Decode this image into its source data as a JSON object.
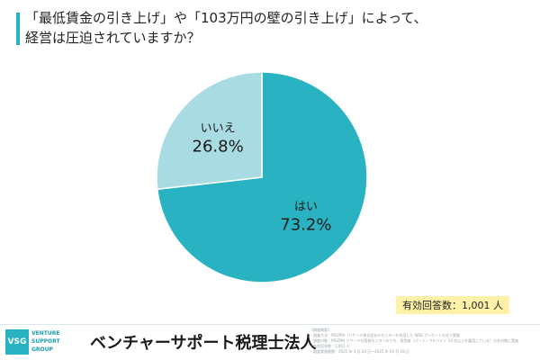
{
  "title": {
    "line1": "「最低賃金の引き上げ」や「103万円の壁の引き上げ」によって、",
    "line2": "経営は圧迫されていますか？"
  },
  "chart_data": {
    "type": "pie",
    "start_angle_deg": 0,
    "direction": "clockwise",
    "slices": [
      {
        "label": "はい",
        "value": 73.2,
        "display": "73.2%",
        "color": "#29b3c2"
      },
      {
        "label": "いいえ",
        "value": 26.8,
        "display": "26.8%",
        "color": "#a8dbe2"
      }
    ]
  },
  "respondents": "有効回答数：1,001 人",
  "footer": {
    "logo_mark": "VSG",
    "logo_lines": [
      "VENTURE",
      "SUPPORT",
      "GROUP"
    ],
    "firm_name": "ベンチャーサポート税理士法人",
    "notes": [
      "《調査概要》",
      "・調査方法：PRIZMA（リサーチ株式会社のモニターを利用した WEB アンケート方式で実施",
      "・調査対象：PRIZMA リサーチ社登録モニターのうち、経営者（パート・アルバイト 10 名以上を雇用している）方を対象に実施",
      "・有効回答数：1,001 人",
      "・調査実施期間：2025 年 4 月 24 日〜2025 年 04 月 28 日"
    ]
  }
}
